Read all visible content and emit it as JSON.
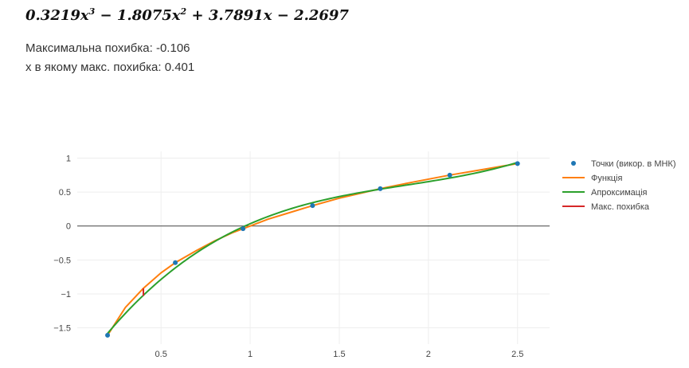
{
  "header": {
    "formula": {
      "c3": "0.3219",
      "p3": "3",
      "op2": " − ",
      "c2": "1.8075",
      "p2": "2",
      "op1": " + ",
      "c1": "3.7891",
      "op0": " − ",
      "c0": "2.2697",
      "var": "x"
    },
    "max_error_line": "Максимальна похибка: -0.106",
    "max_error_x_line": "x в якому макс. похибка: 0.401"
  },
  "chart_data": {
    "type": "line",
    "xlim": [
      0.03,
      2.68
    ],
    "ylim": [
      -1.74,
      1.1
    ],
    "x_ticks": [
      0.5,
      1,
      1.5,
      2,
      2.5
    ],
    "x_tick_labels": [
      "0.5",
      "1",
      "1.5",
      "2",
      "2.5"
    ],
    "y_ticks": [
      1,
      0.5,
      0,
      -0.5,
      -1,
      -1.5
    ],
    "y_tick_labels": [
      "1",
      "0.5",
      "0",
      "−0.5",
      "−1",
      "−1.5"
    ],
    "grid": true,
    "legend_position": "right",
    "points": {
      "name": "Точки (викор. в МНК)",
      "color": "#1f77b4",
      "x": [
        0.2,
        0.58,
        0.96,
        1.35,
        1.73,
        2.12,
        2.5
      ],
      "y": [
        -1.61,
        -0.54,
        -0.04,
        0.3,
        0.55,
        0.75,
        0.92
      ]
    },
    "function": {
      "name": "Функція",
      "color": "#ff7f0e",
      "x": [
        0.2,
        0.3,
        0.4,
        0.5,
        0.58,
        0.7,
        0.8,
        0.9,
        0.96,
        1.1,
        1.2,
        1.35,
        1.5,
        1.6,
        1.73,
        1.9,
        2.0,
        2.12,
        2.3,
        2.5
      ],
      "y": [
        -1.61,
        -1.2,
        -0.92,
        -0.69,
        -0.54,
        -0.36,
        -0.22,
        -0.1,
        -0.04,
        0.1,
        0.18,
        0.3,
        0.41,
        0.47,
        0.55,
        0.64,
        0.69,
        0.75,
        0.83,
        0.92
      ]
    },
    "approximation": {
      "name": "Апроксимація",
      "coefficients": [
        0.3219,
        -1.8075,
        3.7891,
        -2.2697
      ],
      "x_range": [
        0.2,
        2.5
      ],
      "color": "#2ca02c"
    },
    "max_error": {
      "name": "Макс. похибка",
      "color": "#d62728",
      "x": 0.401,
      "y_function": -0.92,
      "y_approximation": -1.03
    }
  }
}
